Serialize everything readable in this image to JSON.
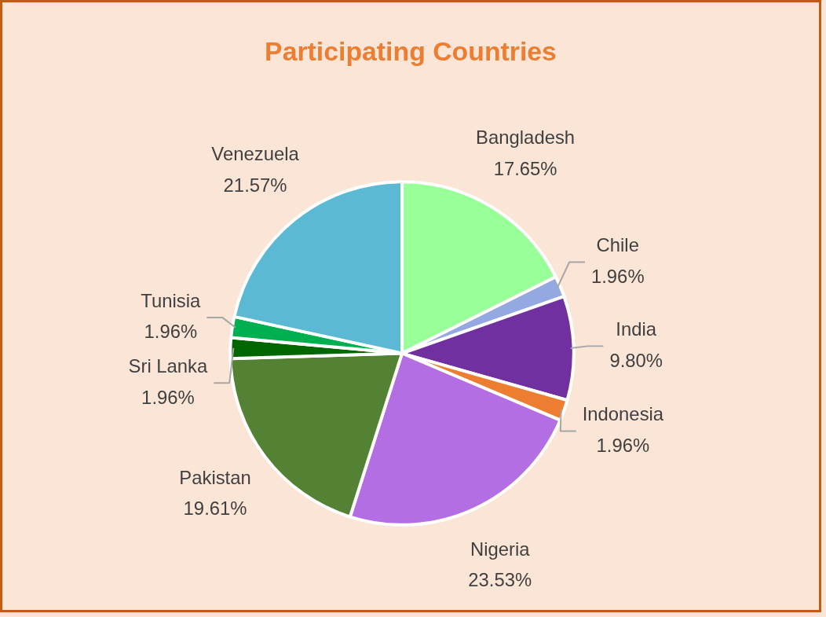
{
  "chart_data": {
    "type": "pie",
    "title": "Participating Countries",
    "categories": [
      "Bangladesh",
      "Chile",
      "India",
      "Indonesia",
      "Nigeria",
      "Pakistan",
      "Sri Lanka",
      "Tunisia",
      "Venezuela"
    ],
    "values": [
      17.65,
      1.96,
      9.8,
      1.96,
      23.53,
      19.61,
      1.96,
      1.96,
      21.57
    ],
    "value_labels": [
      "17.65%",
      "1.96%",
      "9.80%",
      "1.96%",
      "23.53%",
      "19.61%",
      "1.96%",
      "1.96%",
      "21.57%"
    ],
    "colors": [
      "#99ff99",
      "#94a9e2",
      "#7030a0",
      "#ed7d31",
      "#b36ee3",
      "#548235",
      "#006600",
      "#00b050",
      "#5bb9d3"
    ],
    "legend": false
  }
}
